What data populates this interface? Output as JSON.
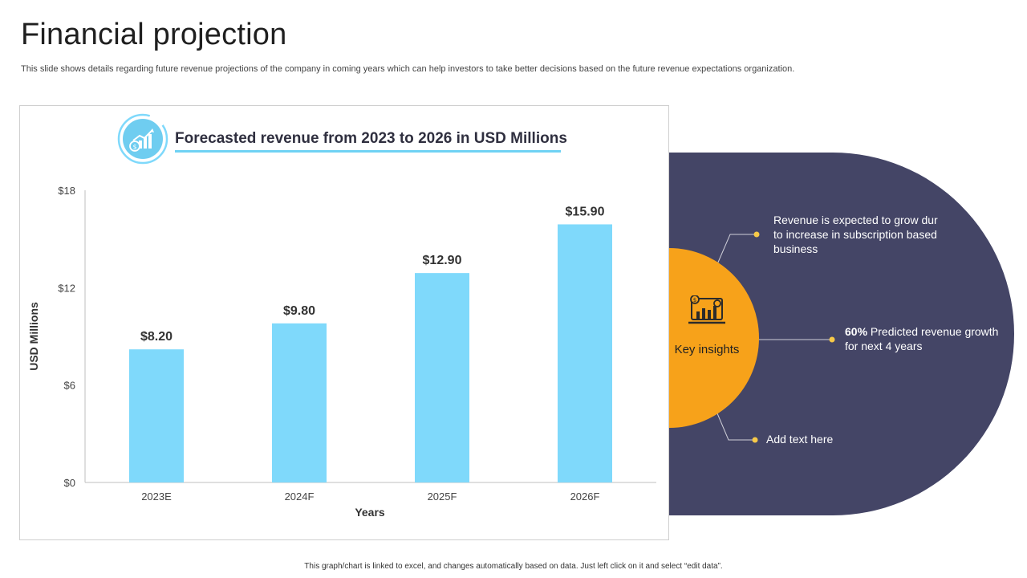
{
  "page": {
    "title": "Financial projection",
    "subtitle": "This slide shows details regarding future revenue projections of the company in coming years which can help investors to take better decisions based on the future revenue expectations organization.",
    "footer": "This graph/chart is linked to excel, and changes automatically based on data. Just left click on it and select “edit data”."
  },
  "chart_data": {
    "type": "bar",
    "title": "Forecasted revenue from 2023 to 2026 in USD Millions",
    "categories": [
      "2023E",
      "2024F",
      "2025F",
      "2026F"
    ],
    "values": [
      8.2,
      9.8,
      12.9,
      15.9
    ],
    "value_labels": [
      "$8.20",
      "$9.80",
      "$12.90",
      "$15.90"
    ],
    "xlabel": "Years",
    "ylabel": "USD Millions",
    "ylim": [
      0,
      18
    ],
    "yticks": [
      0,
      6,
      12,
      18
    ],
    "ytick_labels": [
      "$0",
      "$6",
      "$12",
      "$18"
    ],
    "grid": false,
    "legend": "none",
    "bar_color": "#7fd9fb"
  },
  "insights": {
    "label": "Key insights",
    "items": [
      {
        "text": "Revenue is expected to grow dur to increase in subscription based business"
      },
      {
        "highlight": "60%",
        "text": " Predicted revenue growth for next 4 years"
      },
      {
        "text": "Add text here"
      }
    ],
    "colors": {
      "panel": "#444566",
      "circle": "#f7a21a",
      "dot": "#f7c948"
    }
  }
}
